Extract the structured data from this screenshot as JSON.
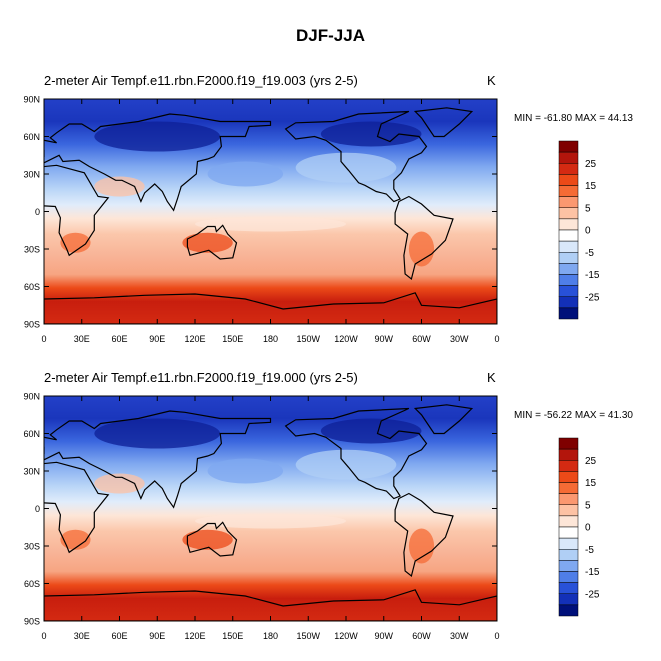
{
  "figure": {
    "title": "DJF-JJA"
  },
  "panels": [
    {
      "title": "2-meter Air Tempf.e11.rbn.F2000.f19_f19.003 (yrs 2-5)",
      "units": "K",
      "stats": "MIN = -61.80 MAX =  44.13"
    },
    {
      "title": "2-meter Air Tempf.e11.rbn.F2000.f19_f19.000 (yrs 2-5)",
      "units": "K",
      "stats": "MIN = -56.22 MAX =  41.30"
    }
  ],
  "map_axes": {
    "lat_labels": [
      "90N",
      "60N",
      "30N",
      "0",
      "30S",
      "60S",
      "90S"
    ],
    "lon_labels": [
      "0",
      "30E",
      "60E",
      "90E",
      "120E",
      "150E",
      "180",
      "150W",
      "120W",
      "90W",
      "60W",
      "30W",
      "0"
    ]
  },
  "colorbar": {
    "labels": [
      "25",
      "15",
      "5",
      "0",
      "-5",
      "-15",
      "-25"
    ],
    "colors": [
      "#7f0000",
      "#b3150c",
      "#d42a12",
      "#ec4a18",
      "#f56b35",
      "#fb9870",
      "#fdc2a4",
      "#fde6d8",
      "#ffffff",
      "#d9e8fa",
      "#b0cff5",
      "#7fa8f0",
      "#4f7ee8",
      "#2851d8",
      "#1330b8",
      "#00107a"
    ]
  }
}
